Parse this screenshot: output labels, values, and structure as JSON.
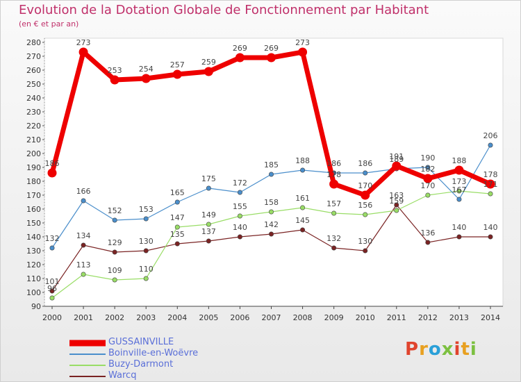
{
  "header": {
    "title": "Evolution de la Dotation Globale de Fonctionnement par Habitant",
    "subtitle": "(en € et par an)"
  },
  "logo": {
    "text": "Proxiti",
    "colors": [
      "#e0442e",
      "#e8a020",
      "#2aa0d8",
      "#7cc040"
    ]
  },
  "chart_data": {
    "type": "line",
    "x": [
      "2000",
      "2001",
      "2002",
      "2003",
      "2004",
      "2005",
      "2006",
      "2007",
      "2008",
      "2009",
      "2010",
      "2011",
      "2012",
      "2013",
      "2014"
    ],
    "ylim": [
      90,
      280
    ],
    "yticks": [
      90,
      100,
      110,
      120,
      130,
      140,
      150,
      160,
      170,
      180,
      190,
      200,
      210,
      220,
      230,
      240,
      250,
      260,
      270,
      280
    ],
    "grid": false,
    "legend_position": "bottom-left",
    "series": [
      {
        "name": "GUSSAINVILLE",
        "color": "#ee0000",
        "width": 7,
        "values": [
          186,
          273,
          253,
          254,
          257,
          259,
          269,
          269,
          273,
          178,
          170,
          191,
          182,
          188,
          178
        ],
        "labels": [
          "186",
          "273",
          "253",
          "254",
          "257",
          "259",
          "269",
          "269",
          "273",
          "178",
          "170",
          "191",
          "182",
          "188",
          "178"
        ]
      },
      {
        "name": "Boinville-en-Woëvre",
        "color": "#4a8ecb",
        "width": 1.2,
        "values": [
          132,
          166,
          152,
          153,
          165,
          175,
          172,
          185,
          188,
          186,
          186,
          189,
          190,
          167,
          206
        ],
        "labels": [
          "132",
          "166",
          "152",
          "153",
          "165",
          "175",
          "172",
          "185",
          "188",
          "186",
          "186",
          "189",
          "190",
          "167",
          "206"
        ]
      },
      {
        "name": "Buzy-Darmont",
        "color": "#99dd66",
        "width": 1.2,
        "values": [
          96,
          113,
          109,
          110,
          147,
          149,
          155,
          158,
          161,
          157,
          156,
          159,
          170,
          173,
          171
        ],
        "labels": [
          "96",
          "113",
          "109",
          "110",
          "147",
          "149",
          "155",
          "158",
          "161",
          "157",
          "156",
          "159",
          "170",
          "173",
          "171"
        ]
      },
      {
        "name": "Warcq",
        "color": "#7a2323",
        "width": 1.2,
        "values": [
          101,
          134,
          129,
          130,
          135,
          137,
          140,
          142,
          145,
          132,
          130,
          163,
          136,
          140,
          140
        ],
        "labels": [
          "101",
          "134",
          "129",
          "130",
          "135",
          "137",
          "140",
          "142",
          "145",
          "132",
          "130",
          "163",
          "136",
          "140",
          "140"
        ]
      }
    ]
  }
}
